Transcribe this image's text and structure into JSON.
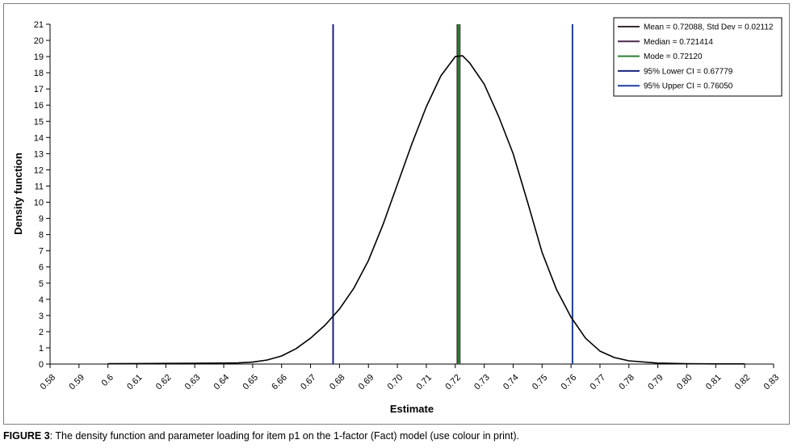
{
  "chart_data": {
    "type": "line",
    "xlabel": "Estimate",
    "ylabel": "Density function",
    "xlim": [
      0.58,
      0.83
    ],
    "ylim": [
      0,
      21
    ],
    "x_ticks": [
      "0.58",
      "0.59",
      "0.6",
      "0.61",
      "0.62",
      "0.63",
      "0.64",
      "0.65",
      "6.66",
      "0.67",
      "0.68",
      "0.69",
      "0.70",
      "0.71",
      "0.72",
      "0.73",
      "0.74",
      "0.75",
      "0.76",
      "0.77",
      "0.78",
      "0.79",
      "0.80",
      "0.81",
      "0.82",
      "0.83"
    ],
    "y_ticks": [
      0,
      1,
      2,
      3,
      4,
      5,
      6,
      7,
      8,
      9,
      10,
      11,
      12,
      13,
      14,
      15,
      16,
      17,
      18,
      19,
      20,
      21
    ],
    "grid": false,
    "legend_position": "top-right",
    "density_curve": {
      "color": "#000000",
      "x": [
        0.6,
        0.61,
        0.62,
        0.63,
        0.64,
        0.645,
        0.65,
        0.655,
        0.66,
        0.665,
        0.67,
        0.675,
        0.68,
        0.685,
        0.69,
        0.695,
        0.7,
        0.705,
        0.71,
        0.715,
        0.72,
        0.7225,
        0.725,
        0.73,
        0.735,
        0.74,
        0.745,
        0.75,
        0.755,
        0.76,
        0.765,
        0.77,
        0.775,
        0.78,
        0.79,
        0.8,
        0.81,
        0.82
      ],
      "y": [
        0.02,
        0.03,
        0.04,
        0.05,
        0.06,
        0.07,
        0.12,
        0.25,
        0.5,
        0.95,
        1.6,
        2.4,
        3.4,
        4.7,
        6.4,
        8.6,
        11.1,
        13.6,
        15.9,
        17.8,
        19.0,
        19.05,
        18.6,
        17.3,
        15.3,
        13.0,
        10.0,
        6.9,
        4.6,
        2.9,
        1.6,
        0.8,
        0.4,
        0.2,
        0.06,
        0.02,
        0.01,
        0.01
      ]
    },
    "series": [
      {
        "name": "Mean = 0.72088, Std Dev = 0.02112",
        "x": 0.72088,
        "color": "#3a2a2a"
      },
      {
        "name": "Median = 0.721414",
        "x": 0.721414,
        "color": "#4b2a4b"
      },
      {
        "name": "Mode = 0.72120",
        "x": 0.7212,
        "color": "#2e7d32"
      },
      {
        "name": "95% Lower CI = 0.67779",
        "x": 0.67779,
        "color": "#1a237e"
      },
      {
        "name": "95% Upper CI = 0.76050",
        "x": 0.7605,
        "color": "#1f3fa0"
      }
    ]
  },
  "caption": {
    "label": "FIGURE 3",
    "text": ": The density function and parameter loading for item p1 on the 1-factor (Fact) model (use colour in print)."
  }
}
